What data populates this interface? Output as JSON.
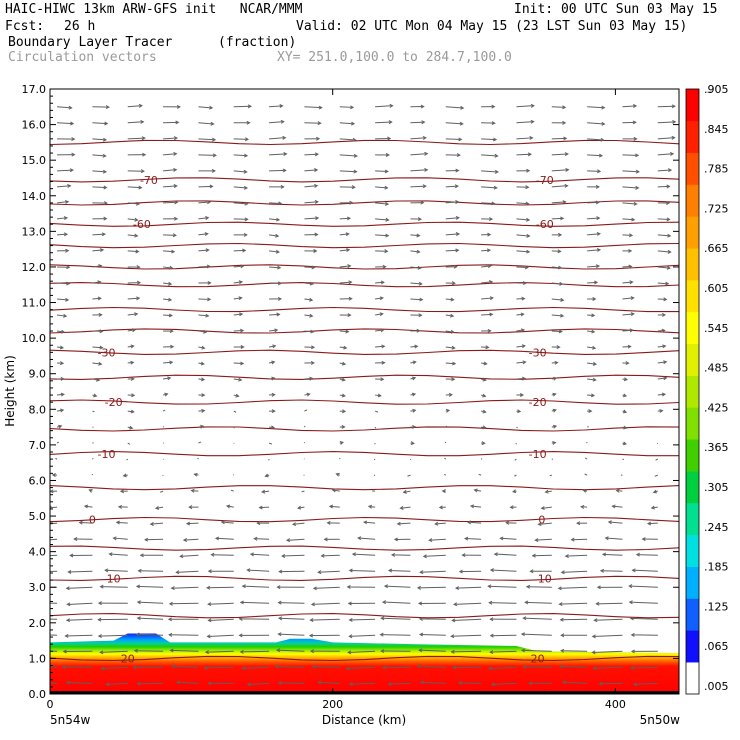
{
  "header": {
    "title_line": "HAIC-HIWC 13km ARW-GFS init   NCAR/MMM",
    "init": "Init: 00 UTC Sun 03 May 15",
    "fcst_label": "Fcst:",
    "fcst_value": "26 h",
    "valid": "Valid: 02 UTC Mon 04 May 15 (23 LST Sun 03 May 15)",
    "field_name": "Boundary Layer Tracer",
    "field_units": "(fraction)",
    "vector_name": "Circulation vectors",
    "xsection": "XY= 251.0,100.0 to 284.7,100.0"
  },
  "chart_data": {
    "type": "heatmap",
    "xlabel": "Distance (km)",
    "ylabel": "Height (km)",
    "xlim": [
      0,
      445
    ],
    "ylim": [
      0,
      17
    ],
    "yticks": [
      "0.0",
      "1.0",
      "2.0",
      "3.0",
      "4.0",
      "5.0",
      "6.0",
      "7.0",
      "8.0",
      "9.0",
      "10.0",
      "11.0",
      "12.0",
      "13.0",
      "14.0",
      "15.0",
      "16.0",
      "17.0"
    ],
    "xticks": [
      "0",
      "200",
      "400"
    ],
    "x_endpoint_left": "5n54w",
    "x_endpoint_right": "5n50w",
    "colorbar_labels": [
      ".005",
      ".065",
      ".125",
      ".185",
      ".245",
      ".305",
      ".365",
      ".425",
      ".485",
      ".545",
      ".605",
      ".665",
      ".725",
      ".785",
      ".845",
      ".905"
    ],
    "colorbar_top_label": "–",
    "colorbar_colors": [
      "#ffffff",
      "#1010ff",
      "#1060ff",
      "#00b0ff",
      "#00e0e0",
      "#00e090",
      "#00d040",
      "#40d000",
      "#80e000",
      "#b0e800",
      "#e0f000",
      "#ffff00",
      "#ffe000",
      "#ffc000",
      "#ffa000",
      "#ff8000",
      "#ff5000",
      "#ff2000",
      "#ff0000"
    ],
    "pbl_top_km": [
      [
        0,
        1.45
      ],
      [
        45,
        1.5
      ],
      [
        55,
        1.7
      ],
      [
        75,
        1.7
      ],
      [
        85,
        1.45
      ],
      [
        160,
        1.45
      ],
      [
        170,
        1.55
      ],
      [
        185,
        1.55
      ],
      [
        200,
        1.45
      ],
      [
        260,
        1.4
      ],
      [
        330,
        1.35
      ],
      [
        345,
        1.2
      ],
      [
        445,
        1.15
      ]
    ],
    "temperature_isotherms": [
      {
        "value": "20",
        "height_km": 1.0,
        "label_x_km": [
          55,
          345
        ]
      },
      {
        "value": "10",
        "height_km": 3.25,
        "label_x_km": [
          45,
          350
        ]
      },
      {
        "value": "0",
        "height_km": 4.9,
        "label_x_km": [
          30,
          348
        ]
      },
      {
        "value": "-10",
        "height_km": 6.75,
        "label_x_km": [
          40,
          345
        ]
      },
      {
        "value": "-20",
        "height_km": 8.2,
        "label_x_km": [
          45,
          345
        ]
      },
      {
        "value": "-30",
        "height_km": 9.6,
        "label_x_km": [
          40,
          345
        ]
      },
      {
        "value": "-60",
        "height_km": 13.2,
        "label_x_km": [
          65,
          350
        ]
      },
      {
        "value": "-70",
        "height_km": 14.45,
        "label_x_km": [
          70,
          350
        ]
      }
    ],
    "unlabeled_isotherm_heights_km": [
      2.2,
      4.1,
      5.8,
      7.45,
      8.9,
      10.2,
      10.8,
      11.5,
      12.0,
      12.6,
      13.8,
      15.5
    ],
    "vector_field": {
      "x_km_spacing": 25,
      "z_km_spacing": 0.45,
      "wind_profile": [
        [
          0,
          -0.6
        ],
        [
          0.5,
          -1.0
        ],
        [
          1.5,
          -1.0
        ],
        [
          3.0,
          -0.95
        ],
        [
          4.0,
          -0.7
        ],
        [
          5.0,
          -0.35
        ],
        [
          6.0,
          -0.1
        ],
        [
          7.0,
          0.05
        ],
        [
          8.0,
          0.15
        ],
        [
          9.0,
          0.25
        ],
        [
          11.0,
          0.35
        ],
        [
          13.0,
          0.4
        ],
        [
          15.0,
          0.55
        ],
        [
          17.0,
          0.55
        ]
      ]
    },
    "colors": {
      "contour": "#8b1a1a",
      "vector": "#606060",
      "axis": "#000000"
    }
  }
}
